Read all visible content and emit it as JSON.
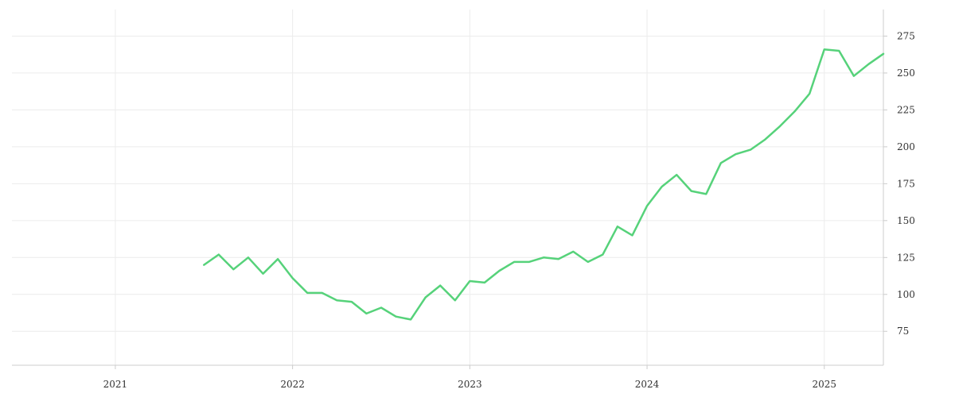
{
  "chart_data": {
    "type": "line",
    "title": "",
    "xlabel": "",
    "ylabel": "",
    "x_ticks": [
      "2021",
      "2022",
      "2023",
      "2024",
      "2025"
    ],
    "y_ticks": [
      75,
      100,
      125,
      150,
      175,
      200,
      225,
      250,
      275
    ],
    "xlim": [
      "2020-06",
      "2025-05"
    ],
    "ylim": [
      52,
      293
    ],
    "grid": true,
    "y_axis_side": "right",
    "line_color": "#56d27a",
    "series": [
      {
        "x": [
          "2021-07",
          "2021-08",
          "2021-09",
          "2021-10",
          "2021-11",
          "2021-12",
          "2022-01",
          "2022-02",
          "2022-03",
          "2022-04",
          "2022-05",
          "2022-06",
          "2022-07",
          "2022-08",
          "2022-09",
          "2022-10",
          "2022-11",
          "2022-12",
          "2023-01",
          "2023-02",
          "2023-03",
          "2023-04",
          "2023-05",
          "2023-06",
          "2023-07",
          "2023-08",
          "2023-09",
          "2023-10",
          "2023-11",
          "2023-12",
          "2024-01",
          "2024-02",
          "2024-03",
          "2024-04",
          "2024-05",
          "2024-06",
          "2024-07",
          "2024-08",
          "2024-09",
          "2024-10",
          "2024-11",
          "2024-12",
          "2025-01",
          "2025-02",
          "2025-03",
          "2025-04",
          "2025-05"
        ],
        "values": [
          120,
          127,
          117,
          125,
          114,
          124,
          111,
          101,
          101,
          96,
          95,
          87,
          91,
          85,
          83,
          98,
          106,
          96,
          109,
          108,
          116,
          122,
          122,
          125,
          124,
          129,
          122,
          127,
          146,
          140,
          160,
          173,
          181,
          170,
          168,
          189,
          195,
          198,
          205,
          214,
          224,
          236,
          266,
          265,
          248,
          256,
          263
        ]
      }
    ]
  }
}
